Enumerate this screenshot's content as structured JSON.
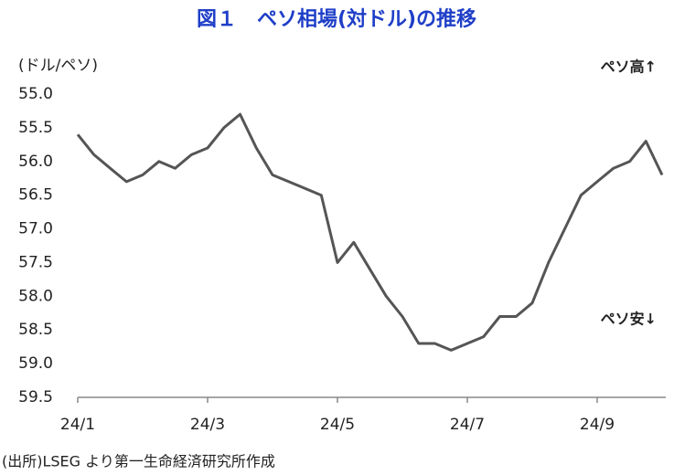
{
  "chart_data": {
    "type": "line",
    "title": "図１　ペソ相場(対ドル)の推移",
    "y_label": "(ドル/ペソ)",
    "annotations": [
      "ペソ高↑",
      "ペソ安↓"
    ],
    "source": "(出所)LSEG より第一生命経済研究所作成",
    "categories": [
      "24/1",
      null,
      null,
      null,
      null,
      null,
      null,
      null,
      "24/3",
      null,
      null,
      null,
      null,
      null,
      null,
      null,
      "24/5",
      null,
      null,
      null,
      null,
      null,
      null,
      null,
      "24/7",
      null,
      null,
      null,
      null,
      null,
      null,
      null,
      "24/9",
      null,
      null,
      null,
      null
    ],
    "series": [
      {
        "name": "ペソ",
        "color": "#555555",
        "values": [
          55.6,
          55.9,
          56.1,
          56.3,
          56.2,
          56.0,
          56.1,
          55.9,
          55.8,
          55.5,
          55.3,
          55.8,
          56.2,
          56.3,
          56.4,
          56.5,
          57.5,
          57.2,
          57.6,
          58.0,
          58.3,
          58.7,
          58.7,
          58.8,
          58.7,
          58.6,
          58.3,
          58.3,
          58.1,
          57.5,
          57.0,
          56.5,
          56.3,
          56.1,
          56.0,
          55.7,
          56.2
        ]
      }
    ],
    "ylim": [
      55,
      59.5
    ],
    "y_inverted": true,
    "yticks": [
      {
        "value": 55,
        "label": "55.0"
      },
      55.5,
      {
        "value": 56,
        "label": "56.0"
      },
      56.5,
      {
        "value": 57,
        "label": "57.0"
      },
      57.5,
      {
        "value": 58,
        "label": "58.0"
      },
      58.5,
      {
        "value": 59,
        "label": "59.0"
      },
      59.5
    ],
    "grid": false
  }
}
